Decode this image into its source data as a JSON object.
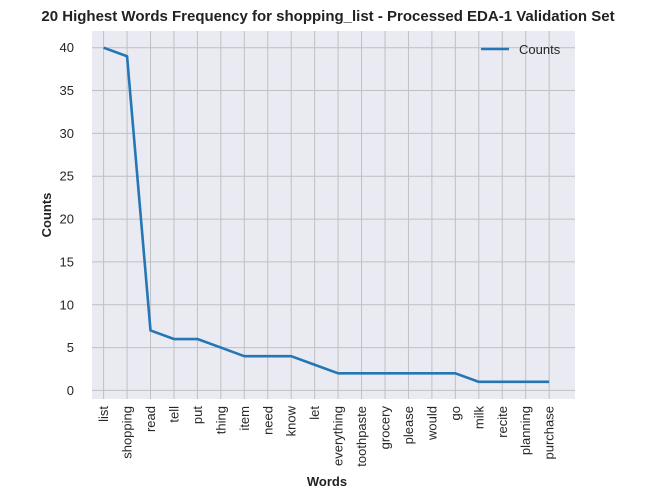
{
  "chart_data": {
    "type": "line",
    "title": "20 Highest Words Frequency for shopping_list - Processed EDA-1 Validation Set",
    "xlabel": "Words",
    "ylabel": "Counts",
    "categories": [
      "list",
      "shopping",
      "read",
      "tell",
      "put",
      "thing",
      "item",
      "need",
      "know",
      "let",
      "everything",
      "toothpaste",
      "grocery",
      "please",
      "would",
      "go",
      "milk",
      "recite",
      "planning",
      "purchase"
    ],
    "series": [
      {
        "name": "Counts",
        "values": [
          40,
          39,
          7,
          6,
          6,
          5,
          4,
          4,
          4,
          3,
          2,
          2,
          2,
          2,
          2,
          2,
          1,
          1,
          1,
          1
        ]
      }
    ],
    "ylim": [
      -1.0,
      41.95
    ],
    "yticks": [
      0,
      5,
      10,
      15,
      20,
      25,
      30,
      35,
      40
    ],
    "grid": true,
    "legend_position": "top-right",
    "colors": {
      "line": "#2576b4",
      "plot_bg": "#eaeaf2",
      "grid": "#c0c0c0"
    }
  }
}
